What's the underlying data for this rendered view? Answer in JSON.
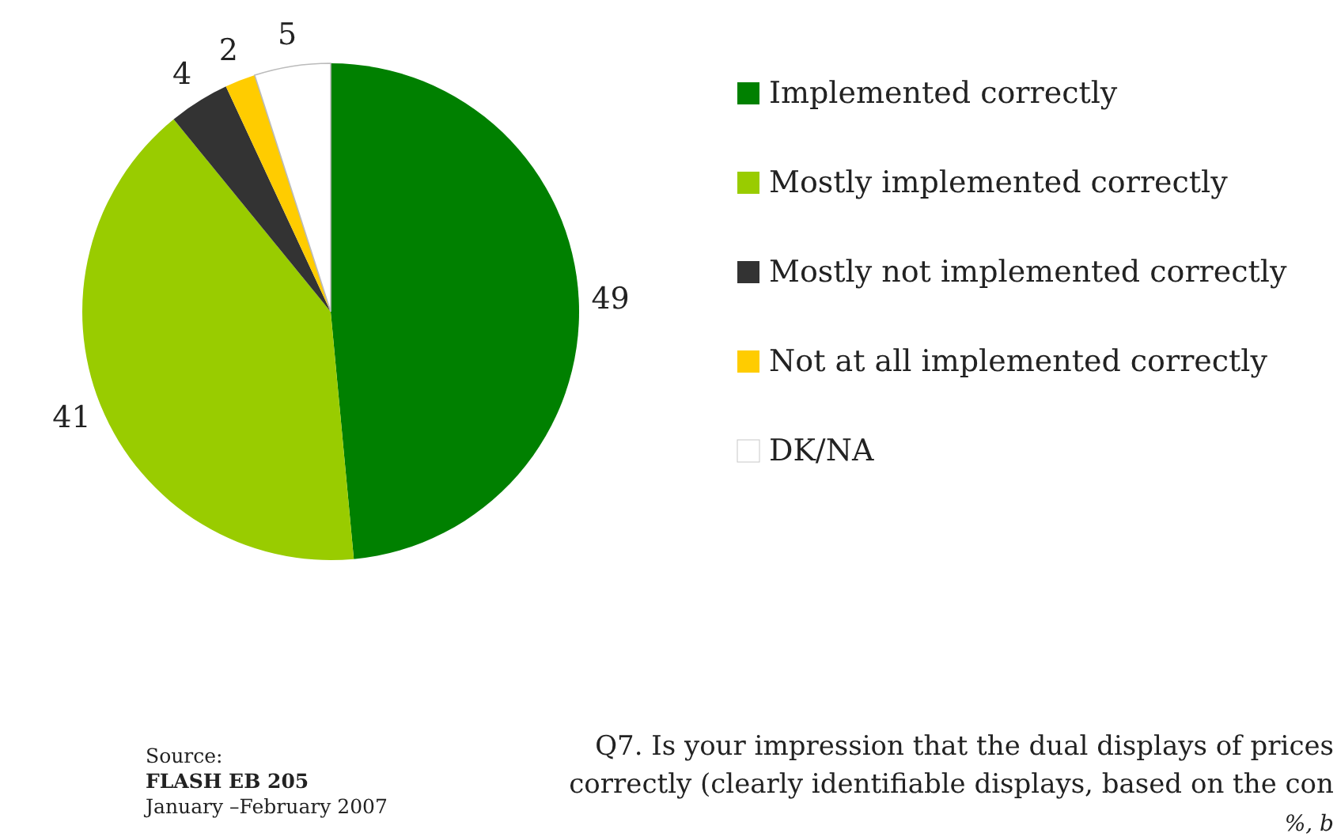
{
  "chart_data": {
    "type": "pie",
    "categories": [
      "Implemented correctly",
      "Mostly implemented correctly",
      "Mostly not implemented correctly",
      "Not at all implemented correctly",
      "DK/NA"
    ],
    "values": [
      49,
      41,
      4,
      2,
      5
    ],
    "colors": [
      "#008000",
      "#99cc00",
      "#333333",
      "#ffcc00",
      "#ffffff"
    ],
    "data_labels": true,
    "legend": "right",
    "annotations": [
      "Source:",
      "FLASH EB 205",
      "January –February 2007",
      "Q7. Is your impression that the dual displays of prices",
      "correctly (clearly identifiable displays, based on the con",
      "%, b"
    ]
  }
}
